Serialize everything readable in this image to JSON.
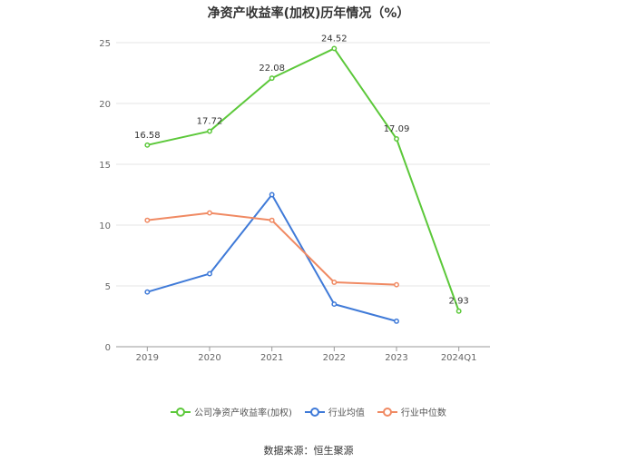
{
  "chart_data": {
    "type": "line",
    "title": "净资产收益率(加权)历年情况（%）",
    "categories": [
      "2019",
      "2020",
      "2021",
      "2022",
      "2023",
      "2024Q1"
    ],
    "ylim": [
      0,
      25
    ],
    "yticks": [
      0,
      5,
      10,
      15,
      20,
      25
    ],
    "grid": true,
    "legend_position": "bottom",
    "series": [
      {
        "name": "公司净资产收益率(加权)",
        "color": "#5cc83a",
        "values": [
          16.58,
          17.72,
          22.08,
          24.52,
          17.09,
          2.93
        ],
        "labels": [
          "16.58",
          "17.72",
          "22.08",
          "24.52",
          "17.09",
          "2.93"
        ]
      },
      {
        "name": "行业均值",
        "color": "#3f7ad8",
        "values": [
          4.5,
          6.0,
          12.5,
          3.5,
          2.1,
          null
        ]
      },
      {
        "name": "行业中位数",
        "color": "#f08a63",
        "values": [
          10.4,
          11.0,
          10.4,
          5.3,
          5.1,
          null
        ]
      }
    ]
  },
  "source": "数据来源：恒生聚源"
}
